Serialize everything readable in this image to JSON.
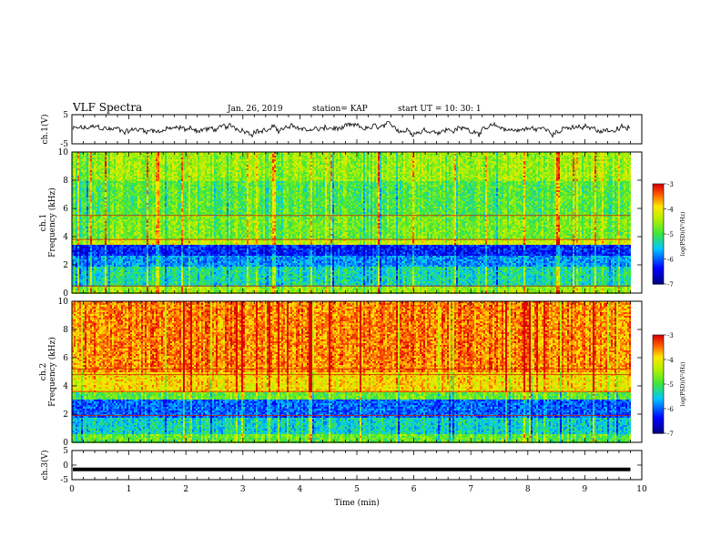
{
  "header": {
    "title": "VLF Spectra",
    "date": "Jan. 26, 2019",
    "station": "station= KAP",
    "start": "start UT = 10: 30: 1"
  },
  "chart_data": [
    {
      "type": "line",
      "panel": "ch1-waveform",
      "ylabel": "ch.1(V)",
      "ylim": [
        -5,
        5
      ],
      "yticks": [
        "5",
        "-5"
      ],
      "xlim": [
        0,
        10
      ],
      "description_values": "noisy waveform oscillating roughly between -2 and +2 V across 0-9.8 min"
    },
    {
      "type": "heatmap",
      "panel": "ch1-spectrogram",
      "ylabel": "ch.1\nFrequency (kHz)",
      "ylabel_line1": "ch.1",
      "ylabel_line2": "Frequency (kHz)",
      "ylim": [
        0,
        10
      ],
      "yticks": [
        "0",
        "2",
        "4",
        "6",
        "8",
        "10"
      ],
      "xlim": [
        0,
        10
      ],
      "data_end_min": 9.8,
      "colorbar": {
        "label": "log(PSD)(V²/Hz)",
        "ticks": [
          "-3",
          "-4",
          "-5",
          "-6",
          "-7"
        ],
        "range": [
          -7,
          -3
        ]
      },
      "bands_khz": [
        {
          "from": 0.0,
          "to": 0.5,
          "level": -4.5
        },
        {
          "from": 0.5,
          "to": 1.9,
          "level": -5.3
        },
        {
          "from": 1.9,
          "to": 2.6,
          "level": -5.8
        },
        {
          "from": 2.6,
          "to": 3.4,
          "level": -6.3
        },
        {
          "from": 3.4,
          "to": 3.8,
          "level": -4.2
        },
        {
          "from": 3.8,
          "to": 5.5,
          "level": -4.7
        },
        {
          "from": 5.5,
          "to": 8.0,
          "level": -4.9
        },
        {
          "from": 8.0,
          "to": 10.0,
          "level": -4.5
        }
      ],
      "lines_khz": [
        0.5,
        3.8,
        5.5
      ]
    },
    {
      "type": "heatmap",
      "panel": "ch2-spectrogram",
      "ylabel_line1": "ch.2",
      "ylabel_line2": "Frequency (kHz)",
      "ylim": [
        0,
        10
      ],
      "yticks": [
        "0",
        "2",
        "4",
        "6",
        "8",
        "10"
      ],
      "xlim": [
        0,
        10
      ],
      "data_end_min": 9.8,
      "colorbar": {
        "label": "log(PSD)(V²/Hz)",
        "ticks": [
          "-3",
          "-4",
          "-5",
          "-6",
          "-7"
        ],
        "range": [
          -7,
          -3
        ]
      },
      "bands_khz": [
        {
          "from": 0.0,
          "to": 0.6,
          "level": -4.8
        },
        {
          "from": 0.6,
          "to": 1.8,
          "level": -5.4
        },
        {
          "from": 1.8,
          "to": 3.0,
          "level": -6.0
        },
        {
          "from": 3.0,
          "to": 3.6,
          "level": -4.8
        },
        {
          "from": 3.6,
          "to": 5.0,
          "level": -3.9
        },
        {
          "from": 5.0,
          "to": 10.0,
          "level": -3.5
        }
      ],
      "lines_khz": [
        1.9,
        3.6,
        4.8,
        5.2
      ]
    },
    {
      "type": "line",
      "panel": "ch3-waveform",
      "ylabel": "ch.3(V)",
      "ylim": [
        -5,
        5
      ],
      "yticks": [
        "5",
        "0",
        "-5"
      ],
      "xlim": [
        0,
        10
      ],
      "xlabel": "Time (min)",
      "xticks": [
        "0",
        "1",
        "2",
        "3",
        "4",
        "5",
        "6",
        "7",
        "8",
        "9",
        "10"
      ],
      "value": -1.5,
      "data_end_min": 9.8
    }
  ]
}
